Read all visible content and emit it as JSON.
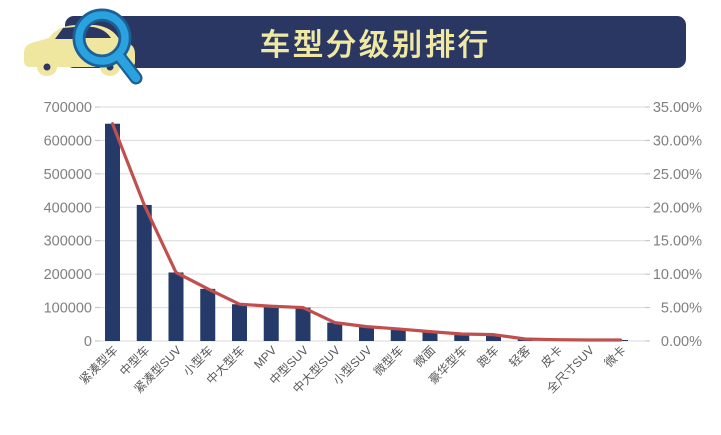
{
  "header": {
    "title": "车型分级别排行",
    "bg_color": "#2A3763",
    "title_color": "#F0E9A3",
    "icon": {
      "car_color": "#EFE6A0",
      "glass_color": "#2AA2DF",
      "glass_outline_color": "#1D6096"
    }
  },
  "chart_data": {
    "type": "bar",
    "title": "车型分级别排行",
    "categories": [
      "紧凑型车",
      "中型车",
      "紧凑型SUV",
      "小型车",
      "中大型车",
      "MPV",
      "中型SUV",
      "中大型SUV",
      "小型SUV",
      "微型车",
      "微面",
      "豪华型车",
      "跑车",
      "轻客",
      "皮卡",
      "全尺寸SUV",
      "微卡"
    ],
    "series": [
      {
        "id": "volume-bars",
        "type": "bar",
        "color": "#263A69",
        "values": [
          650000,
          407000,
          205000,
          156000,
          110000,
          104000,
          100000,
          55000,
          43000,
          36000,
          28000,
          21000,
          19000,
          6000,
          4000,
          3000,
          3000
        ]
      },
      {
        "id": "share-line",
        "type": "line",
        "color": "#C0504D",
        "values": [
          32.5,
          20.35,
          10.25,
          7.8,
          5.5,
          5.2,
          5.0,
          2.75,
          2.15,
          1.8,
          1.4,
          1.05,
          0.95,
          0.3,
          0.2,
          0.15,
          0.15
        ]
      }
    ],
    "left_axis": {
      "min": 0,
      "max": 700000,
      "ticks": [
        "700000",
        "600000",
        "500000",
        "400000",
        "300000",
        "200000",
        "100000",
        "0"
      ]
    },
    "right_axis": {
      "min": 0,
      "max": 35,
      "ticks": [
        "35.00%",
        "30.00%",
        "25.00%",
        "20.00%",
        "15.00%",
        "10.00%",
        "5.00%",
        "0.00%"
      ]
    },
    "grid": true,
    "legend": "none",
    "grid_color": "#D9D9D9",
    "tick_color": "#BFBFBF",
    "axis_text_color": "#7F7F7F",
    "x_label_color": "#595959"
  }
}
